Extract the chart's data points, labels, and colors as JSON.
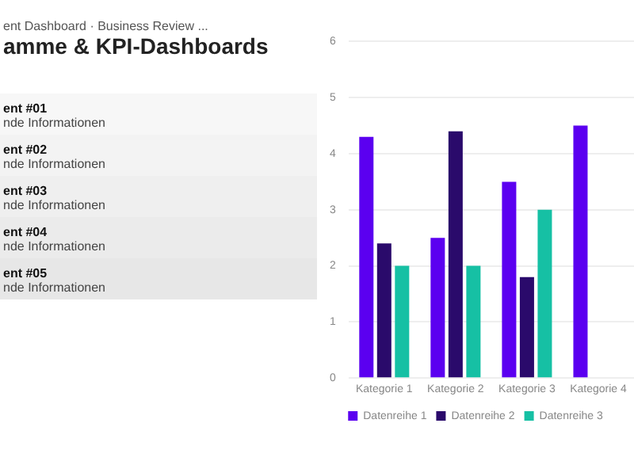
{
  "chart_data": {
    "type": "bar",
    "title": "amme & KPI-Dashboards",
    "subtitle": "ent Dashboard · Business Review ...",
    "annotations": [
      "ent #01",
      "nde Informationen",
      "ent #02",
      "nde Informationen",
      "ent #03",
      "nde Informationen",
      "ent #04",
      "nde Informationen",
      "ent #05",
      "nde Informationen"
    ],
    "categories": [
      "Kategorie 1",
      "Kategorie 2",
      "Kategorie 3",
      "Kategorie 4"
    ],
    "series": [
      {
        "name": "Datenreihe 1",
        "color": "#5b00f0",
        "values": [
          4.3,
          2.5,
          3.5,
          4.5
        ]
      },
      {
        "name": "Datenreihe 2",
        "color": "#2a0a6b",
        "values": [
          2.4,
          4.4,
          1.8,
          null
        ]
      },
      {
        "name": "Datenreihe 3",
        "color": "#16c0a4",
        "values": [
          2.0,
          2.0,
          3.0,
          null
        ]
      }
    ],
    "ylim": [
      0,
      6
    ],
    "yticks": [
      0,
      1,
      2,
      3,
      4,
      5,
      6
    ],
    "grid": "y",
    "legend": "bottom"
  }
}
